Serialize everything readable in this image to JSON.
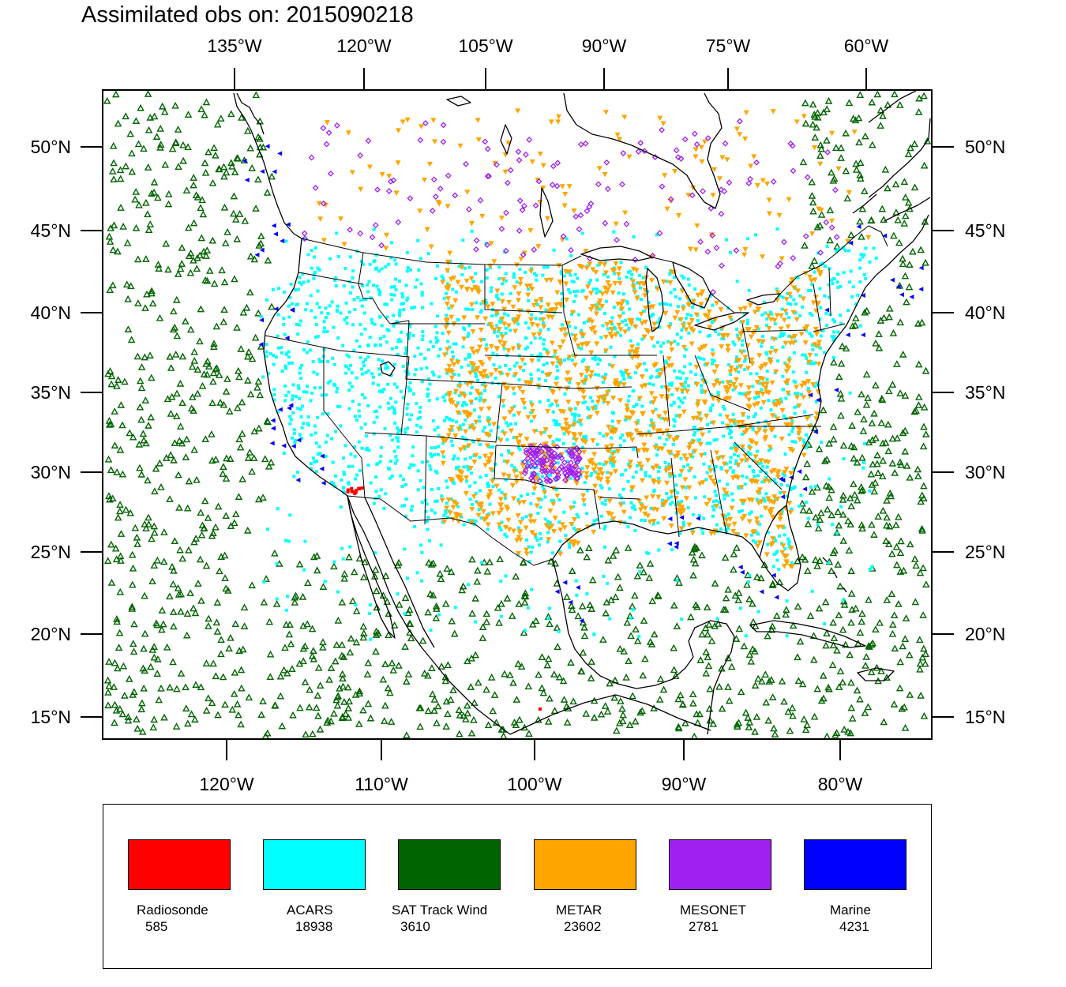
{
  "title": "Assimilated obs on: 2015090218",
  "top_lon_labels": [
    "135°W",
    "120°W",
    "105°W",
    "90°W",
    "75°W",
    "60°W"
  ],
  "bottom_lon_labels": [
    "120°W",
    "110°W",
    "100°W",
    "90°W",
    "80°W"
  ],
  "lat_labels": [
    "50°N",
    "45°N",
    "40°N",
    "35°N",
    "30°N",
    "25°N",
    "20°N",
    "15°N"
  ],
  "legend": [
    {
      "label": "Radiosonde",
      "count": "585",
      "color": "#ff0000"
    },
    {
      "label": "ACARS",
      "count": "18938",
      "color": "#00ffff"
    },
    {
      "label": "SAT Track Wind",
      "count": "3610",
      "color": "#006400"
    },
    {
      "label": "METAR",
      "count": "23602",
      "color": "#ffa500"
    },
    {
      "label": "MESONET",
      "count": "2781",
      "color": "#a020f0"
    },
    {
      "label": "Marine",
      "count": "4231",
      "color": "#0000ff"
    }
  ]
}
